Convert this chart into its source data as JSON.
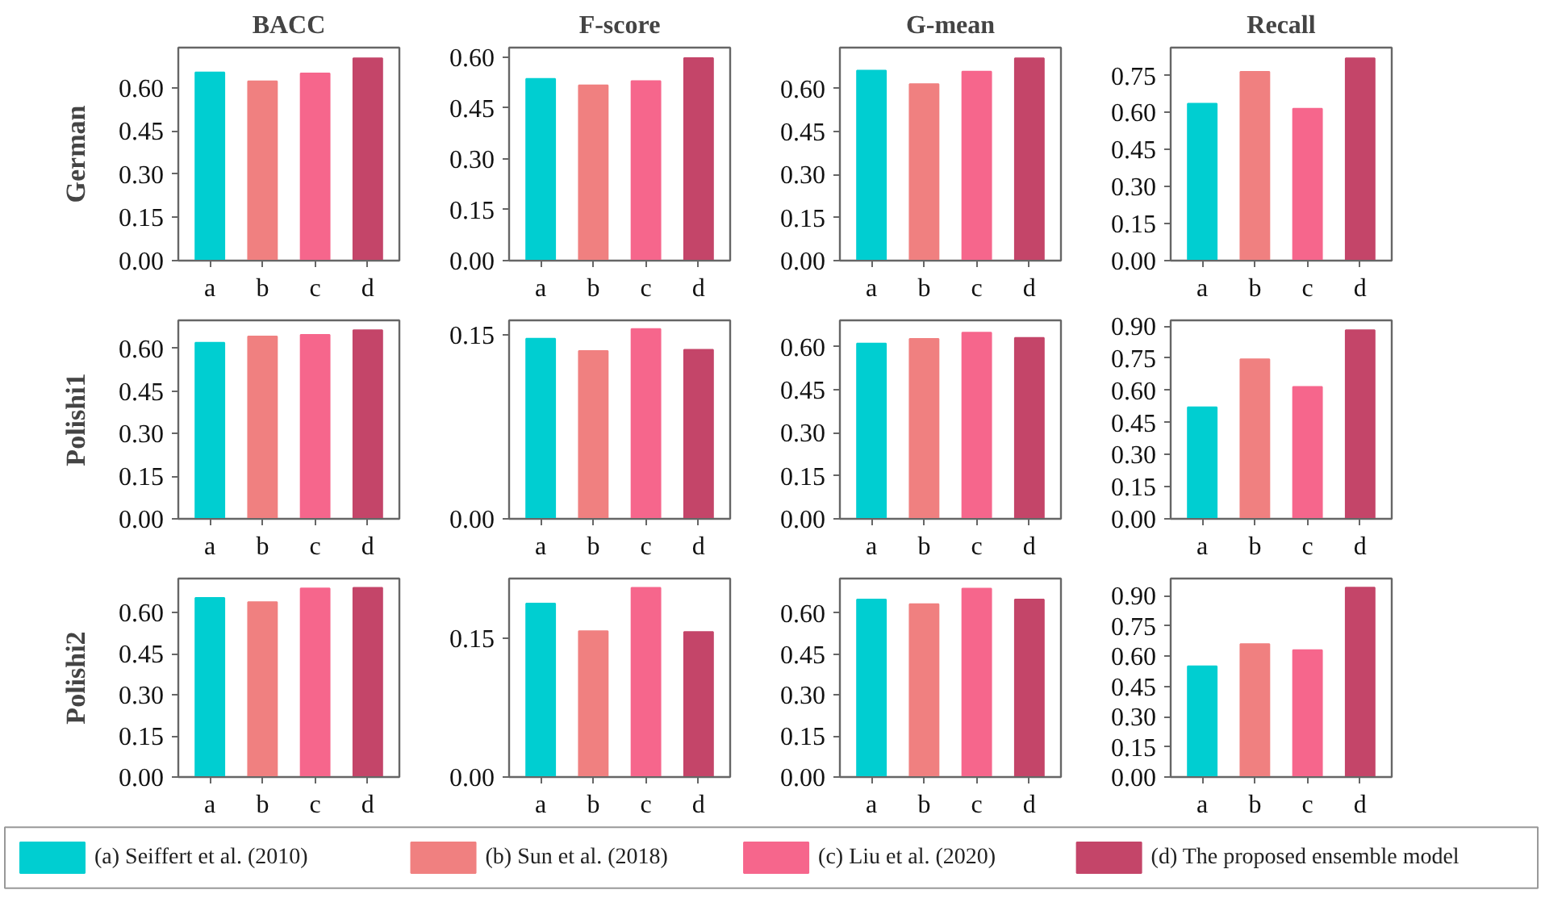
{
  "chart_data": [
    {
      "type": "bar",
      "title": "BACC",
      "ylabel": "German",
      "categories": [
        "a",
        "b",
        "c",
        "d"
      ],
      "legend": "bottom",
      "series": [
        {
          "name": "(a) Seiffert et al. (2010)",
          "color": "#00ced1",
          "values": [
            0.654,
            null,
            null,
            null
          ]
        },
        {
          "name": "(b) Sun et al. (2018)",
          "color": "#f08080",
          "values": [
            null,
            0.623,
            null,
            null
          ]
        },
        {
          "name": "(c) Liu et al. (2020)",
          "color": "#f6668c",
          "values": [
            null,
            null,
            0.65,
            null
          ]
        },
        {
          "name": "(d) The proposed ensemble model",
          "color": "#c44569",
          "values": [
            null,
            null,
            null,
            0.703
          ]
        }
      ],
      "ylim": [
        0,
        0.74
      ],
      "yticks": [
        {
          "value": 0,
          "label": "0.00"
        },
        {
          "value": 0.15,
          "label": "0.15"
        },
        {
          "value": 0.3,
          "label": "0.30"
        },
        {
          "value": 0.45,
          "label": "0.45"
        },
        {
          "value": 0.6,
          "label": "0.60"
        }
      ]
    },
    {
      "type": "bar",
      "title": "F-score",
      "categories": [
        "a",
        "b",
        "c",
        "d"
      ],
      "series": [
        {
          "color": "#00ced1",
          "values": [
            0.536,
            null,
            null,
            null
          ]
        },
        {
          "color": "#f08080",
          "values": [
            null,
            0.517,
            null,
            null
          ]
        },
        {
          "color": "#f6668c",
          "values": [
            null,
            null,
            0.529,
            null
          ]
        },
        {
          "color": "#c44569",
          "values": [
            null,
            null,
            null,
            0.597
          ]
        }
      ],
      "ylim": [
        0,
        0.628
      ],
      "yticks": [
        {
          "value": 0,
          "label": "0.00"
        },
        {
          "value": 0.15,
          "label": "0.15"
        },
        {
          "value": 0.3,
          "label": "0.30"
        },
        {
          "value": 0.45,
          "label": "0.45"
        },
        {
          "value": 0.6,
          "label": "0.60"
        }
      ]
    },
    {
      "type": "bar",
      "title": "G-mean",
      "categories": [
        "a",
        "b",
        "c",
        "d"
      ],
      "series": [
        {
          "color": "#00ced1",
          "values": [
            0.663,
            null,
            null,
            null
          ]
        },
        {
          "color": "#f08080",
          "values": [
            null,
            0.616,
            null,
            null
          ]
        },
        {
          "color": "#f6668c",
          "values": [
            null,
            null,
            0.659,
            null
          ]
        },
        {
          "color": "#c44569",
          "values": [
            null,
            null,
            null,
            0.706
          ]
        }
      ],
      "ylim": [
        0,
        0.743
      ],
      "yticks": [
        {
          "value": 0,
          "label": "0.00"
        },
        {
          "value": 0.15,
          "label": "0.15"
        },
        {
          "value": 0.3,
          "label": "0.30"
        },
        {
          "value": 0.45,
          "label": "0.45"
        },
        {
          "value": 0.6,
          "label": "0.60"
        }
      ]
    },
    {
      "type": "bar",
      "title": "Recall",
      "categories": [
        "a",
        "b",
        "c",
        "d"
      ],
      "series": [
        {
          "color": "#00ced1",
          "values": [
            0.636,
            null,
            null,
            null
          ]
        },
        {
          "color": "#f08080",
          "values": [
            null,
            0.765,
            null,
            null
          ]
        },
        {
          "color": "#f6668c",
          "values": [
            null,
            null,
            0.615,
            null
          ]
        },
        {
          "color": "#c44569",
          "values": [
            null,
            null,
            null,
            0.82
          ]
        }
      ],
      "ylim": [
        0,
        0.863
      ],
      "yticks": [
        {
          "value": 0,
          "label": "0.00"
        },
        {
          "value": 0.15,
          "label": "0.15"
        },
        {
          "value": 0.3,
          "label": "0.30"
        },
        {
          "value": 0.45,
          "label": "0.45"
        },
        {
          "value": 0.6,
          "label": "0.60"
        },
        {
          "value": 0.75,
          "label": "0.75"
        }
      ]
    },
    {
      "type": "bar",
      "ylabel": "Polishi1",
      "categories": [
        "a",
        "b",
        "c",
        "d"
      ],
      "series": [
        {
          "color": "#00ced1",
          "values": [
            0.62,
            null,
            null,
            null
          ]
        },
        {
          "color": "#f08080",
          "values": [
            null,
            0.642,
            null,
            null
          ]
        },
        {
          "color": "#f6668c",
          "values": [
            null,
            null,
            0.648,
            null
          ]
        },
        {
          "color": "#c44569",
          "values": [
            null,
            null,
            null,
            0.664
          ]
        }
      ],
      "ylim": [
        0,
        0.699
      ],
      "yticks": [
        {
          "value": 0,
          "label": "0.00"
        },
        {
          "value": 0.15,
          "label": "0.15"
        },
        {
          "value": 0.3,
          "label": "0.30"
        },
        {
          "value": 0.45,
          "label": "0.45"
        },
        {
          "value": 0.6,
          "label": "0.60"
        }
      ]
    },
    {
      "type": "bar",
      "categories": [
        "a",
        "b",
        "c",
        "d"
      ],
      "series": [
        {
          "color": "#00ced1",
          "values": [
            0.147,
            null,
            null,
            null
          ]
        },
        {
          "color": "#f08080",
          "values": [
            null,
            0.137,
            null,
            null
          ]
        },
        {
          "color": "#f6668c",
          "values": [
            null,
            null,
            0.155,
            null
          ]
        },
        {
          "color": "#c44569",
          "values": [
            null,
            null,
            null,
            0.138
          ]
        }
      ],
      "ylim": [
        0,
        0.162
      ],
      "yticks": [
        {
          "value": 0,
          "label": "0.00"
        },
        {
          "value": 0.15,
          "label": "0.15"
        }
      ]
    },
    {
      "type": "bar",
      "categories": [
        "a",
        "b",
        "c",
        "d"
      ],
      "series": [
        {
          "color": "#00ced1",
          "values": [
            0.611,
            null,
            null,
            null
          ]
        },
        {
          "color": "#f08080",
          "values": [
            null,
            0.627,
            null,
            null
          ]
        },
        {
          "color": "#f6668c",
          "values": [
            null,
            null,
            0.649,
            null
          ]
        },
        {
          "color": "#c44569",
          "values": [
            null,
            null,
            null,
            0.631
          ]
        }
      ],
      "ylim": [
        0,
        0.692
      ],
      "yticks": [
        {
          "value": 0,
          "label": "0.00"
        },
        {
          "value": 0.15,
          "label": "0.15"
        },
        {
          "value": 0.3,
          "label": "0.30"
        },
        {
          "value": 0.45,
          "label": "0.45"
        },
        {
          "value": 0.6,
          "label": "0.60"
        }
      ]
    },
    {
      "type": "bar",
      "categories": [
        "a",
        "b",
        "c",
        "d"
      ],
      "series": [
        {
          "color": "#00ced1",
          "values": [
            0.521,
            null,
            null,
            null
          ]
        },
        {
          "color": "#f08080",
          "values": [
            null,
            0.745,
            null,
            null
          ]
        },
        {
          "color": "#f6668c",
          "values": [
            null,
            null,
            0.616,
            null
          ]
        },
        {
          "color": "#c44569",
          "values": [
            null,
            null,
            null,
            0.881
          ]
        }
      ],
      "ylim": [
        0,
        0.927
      ],
      "yticks": [
        {
          "value": 0,
          "label": "0.00"
        },
        {
          "value": 0.15,
          "label": "0.15"
        },
        {
          "value": 0.3,
          "label": "0.30"
        },
        {
          "value": 0.45,
          "label": "0.45"
        },
        {
          "value": 0.6,
          "label": "0.60"
        },
        {
          "value": 0.75,
          "label": "0.75"
        },
        {
          "value": 0.9,
          "label": "0.90"
        }
      ]
    },
    {
      "type": "bar",
      "ylabel": "Polishi2",
      "categories": [
        "a",
        "b",
        "c",
        "d"
      ],
      "series": [
        {
          "color": "#00ced1",
          "values": [
            0.653,
            null,
            null,
            null
          ]
        },
        {
          "color": "#f08080",
          "values": [
            null,
            0.638,
            null,
            null
          ]
        },
        {
          "color": "#f6668c",
          "values": [
            null,
            null,
            0.688,
            null
          ]
        },
        {
          "color": "#c44569",
          "values": [
            null,
            null,
            null,
            0.69
          ]
        }
      ],
      "ylim": [
        0,
        0.724
      ],
      "yticks": [
        {
          "value": 0,
          "label": "0.00"
        },
        {
          "value": 0.15,
          "label": "0.15"
        },
        {
          "value": 0.3,
          "label": "0.30"
        },
        {
          "value": 0.45,
          "label": "0.45"
        },
        {
          "value": 0.6,
          "label": "0.60"
        }
      ]
    },
    {
      "type": "bar",
      "categories": [
        "a",
        "b",
        "c",
        "d"
      ],
      "series": [
        {
          "color": "#00ced1",
          "values": [
            0.188,
            null,
            null,
            null
          ]
        },
        {
          "color": "#f08080",
          "values": [
            null,
            0.158,
            null,
            null
          ]
        },
        {
          "color": "#f6668c",
          "values": [
            null,
            null,
            0.205,
            null
          ]
        },
        {
          "color": "#c44569",
          "values": [
            null,
            null,
            null,
            0.157
          ]
        }
      ],
      "ylim": [
        0,
        0.215
      ],
      "yticks": [
        {
          "value": 0,
          "label": "0.00"
        },
        {
          "value": 0.15,
          "label": "0.15"
        }
      ]
    },
    {
      "type": "bar",
      "categories": [
        "a",
        "b",
        "c",
        "d"
      ],
      "series": [
        {
          "color": "#00ced1",
          "values": [
            0.65,
            null,
            null,
            null
          ]
        },
        {
          "color": "#f08080",
          "values": [
            null,
            0.633,
            null,
            null
          ]
        },
        {
          "color": "#f6668c",
          "values": [
            null,
            null,
            0.69,
            null
          ]
        },
        {
          "color": "#c44569",
          "values": [
            null,
            null,
            null,
            0.65
          ]
        }
      ],
      "ylim": [
        0,
        0.727
      ],
      "yticks": [
        {
          "value": 0,
          "label": "0.00"
        },
        {
          "value": 0.15,
          "label": "0.15"
        },
        {
          "value": 0.3,
          "label": "0.30"
        },
        {
          "value": 0.45,
          "label": "0.45"
        },
        {
          "value": 0.6,
          "label": "0.60"
        }
      ]
    },
    {
      "type": "bar",
      "categories": [
        "a",
        "b",
        "c",
        "d"
      ],
      "series": [
        {
          "color": "#00ced1",
          "values": [
            0.55,
            null,
            null,
            null
          ]
        },
        {
          "color": "#f08080",
          "values": [
            null,
            0.66,
            null,
            null
          ]
        },
        {
          "color": "#f6668c",
          "values": [
            null,
            null,
            0.63,
            null
          ]
        },
        {
          "color": "#c44569",
          "values": [
            null,
            null,
            null,
            0.94
          ]
        }
      ],
      "ylim": [
        0,
        0.985
      ],
      "yticks": [
        {
          "value": 0,
          "label": "0.00"
        },
        {
          "value": 0.15,
          "label": "0.15"
        },
        {
          "value": 0.3,
          "label": "0.30"
        },
        {
          "value": 0.45,
          "label": "0.45"
        },
        {
          "value": 0.6,
          "label": "0.60"
        },
        {
          "value": 0.75,
          "label": "0.75"
        },
        {
          "value": 0.9,
          "label": "0.90"
        }
      ]
    }
  ]
}
